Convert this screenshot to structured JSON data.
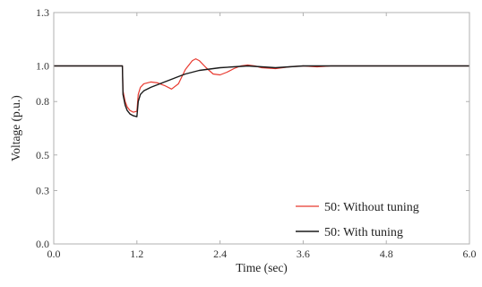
{
  "chart_data": {
    "type": "line",
    "title": "",
    "xlabel": "Time (sec)",
    "ylabel": "Voltage (p.u.)",
    "xlim": [
      0.0,
      6.0
    ],
    "ylim": [
      0.0,
      1.3
    ],
    "xticks": [
      0.0,
      1.2,
      2.4,
      3.6,
      4.8,
      6.0
    ],
    "xtick_labels": [
      "0.0",
      "1.2",
      "2.4",
      "3.6",
      "4.8",
      "6.0"
    ],
    "yticks": [
      0.0,
      0.3,
      0.5,
      0.8,
      1.0,
      1.3
    ],
    "ytick_labels": [
      "0.0",
      "0.3",
      "0.5",
      "0.8",
      "1.0",
      "1.3"
    ],
    "grid": false,
    "legend_position": "bottom-right",
    "series": [
      {
        "name": "50: Without tuning",
        "color": "#e8392f",
        "x": [
          0.0,
          0.99,
          1.0,
          1.03,
          1.06,
          1.1,
          1.15,
          1.2,
          1.22,
          1.25,
          1.3,
          1.4,
          1.5,
          1.6,
          1.7,
          1.8,
          1.9,
          2.0,
          2.05,
          2.1,
          2.2,
          2.3,
          2.4,
          2.5,
          2.6,
          2.7,
          2.8,
          2.9,
          3.0,
          3.2,
          3.4,
          3.6,
          3.8,
          4.0,
          4.5,
          5.0,
          6.0
        ],
        "y": [
          1.0,
          1.0,
          0.86,
          0.8,
          0.77,
          0.75,
          0.74,
          0.745,
          0.84,
          0.88,
          0.9,
          0.91,
          0.905,
          0.89,
          0.87,
          0.9,
          0.98,
          1.03,
          1.04,
          1.03,
          0.99,
          0.955,
          0.95,
          0.965,
          0.985,
          1.0,
          1.005,
          1.0,
          0.99,
          0.985,
          0.995,
          1.0,
          0.995,
          1.0,
          1.0,
          1.0,
          1.0
        ]
      },
      {
        "name": "50: With tuning",
        "color": "#1a1a1a",
        "x": [
          0.0,
          0.99,
          1.0,
          1.03,
          1.06,
          1.1,
          1.15,
          1.2,
          1.22,
          1.25,
          1.3,
          1.4,
          1.5,
          1.6,
          1.7,
          1.8,
          1.9,
          2.0,
          2.1,
          2.2,
          2.3,
          2.4,
          2.6,
          2.8,
          3.0,
          3.2,
          3.4,
          3.6,
          3.8,
          4.0,
          4.5,
          5.0,
          6.0
        ],
        "y": [
          1.0,
          1.0,
          0.84,
          0.78,
          0.75,
          0.73,
          0.72,
          0.715,
          0.8,
          0.84,
          0.86,
          0.88,
          0.895,
          0.91,
          0.925,
          0.94,
          0.955,
          0.965,
          0.975,
          0.98,
          0.985,
          0.99,
          0.995,
          1.0,
          0.995,
          0.99,
          0.995,
          1.0,
          1.0,
          1.0,
          1.0,
          1.0,
          1.0
        ]
      }
    ]
  }
}
